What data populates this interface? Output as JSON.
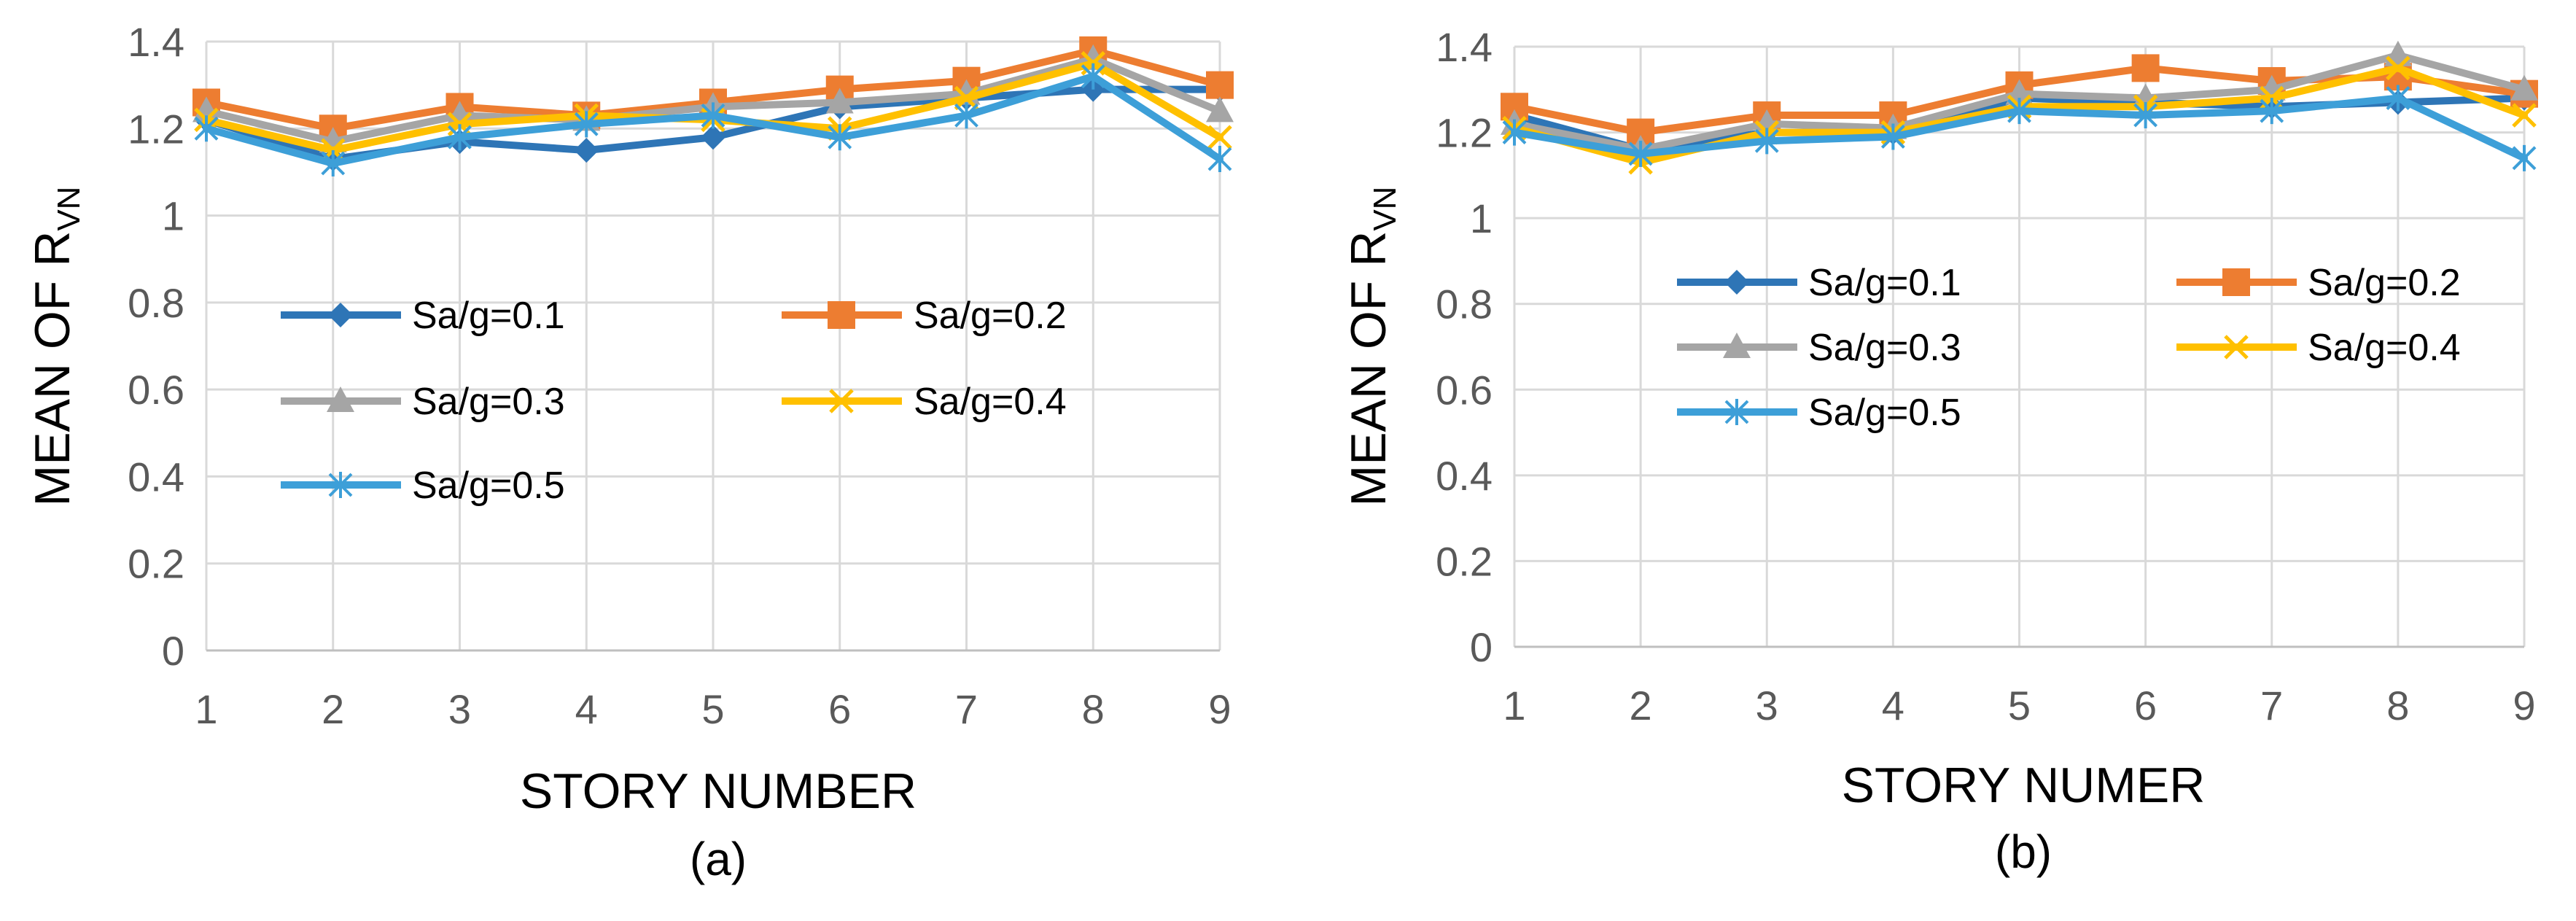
{
  "series_styles": [
    {
      "name": "Sa/g=0.1",
      "color": "#2E75B6",
      "marker": "diamond"
    },
    {
      "name": "Sa/g=0.2",
      "color": "#ED7D31",
      "marker": "square"
    },
    {
      "name": "Sa/g=0.3",
      "color": "#A5A5A5",
      "marker": "triangle"
    },
    {
      "name": "Sa/g=0.4",
      "color": "#FFC000",
      "marker": "x"
    },
    {
      "name": "Sa/g=0.5",
      "color": "#3D9FD8",
      "marker": "asterisk"
    }
  ],
  "chart_data": [
    {
      "type": "line",
      "caption": "(a)",
      "title": "",
      "xlabel": "STORY NUMBER",
      "ylabel_main": "MEAN OF R",
      "ylabel_sub": "VN",
      "x": [
        1,
        2,
        3,
        4,
        5,
        6,
        7,
        8,
        9
      ],
      "ylim": [
        0,
        1.4
      ],
      "yticks": [
        0,
        0.2,
        0.4,
        0.6,
        0.8,
        1,
        1.2,
        1.4
      ],
      "grid": true,
      "legend_position": "inside-lower",
      "series": [
        {
          "name": "Sa/g=0.1",
          "values": [
            1.22,
            1.13,
            1.17,
            1.15,
            1.18,
            1.25,
            1.27,
            1.29,
            1.29
          ]
        },
        {
          "name": "Sa/g=0.2",
          "values": [
            1.26,
            1.2,
            1.25,
            1.23,
            1.26,
            1.29,
            1.31,
            1.38,
            1.3
          ]
        },
        {
          "name": "Sa/g=0.3",
          "values": [
            1.24,
            1.17,
            1.23,
            1.22,
            1.25,
            1.26,
            1.28,
            1.36,
            1.24
          ]
        },
        {
          "name": "Sa/g=0.4",
          "values": [
            1.22,
            1.15,
            1.21,
            1.23,
            1.22,
            1.2,
            1.27,
            1.35,
            1.18
          ]
        },
        {
          "name": "Sa/g=0.5",
          "values": [
            1.2,
            1.12,
            1.18,
            1.21,
            1.23,
            1.18,
            1.23,
            1.32,
            1.13
          ]
        }
      ]
    },
    {
      "type": "line",
      "caption": "(b)",
      "title": "",
      "xlabel": "STORY NUMER",
      "ylabel_main": "MEAN OF R",
      "ylabel_sub": "VN",
      "x": [
        1,
        2,
        3,
        4,
        5,
        6,
        7,
        8,
        9
      ],
      "ylim": [
        0,
        1.4
      ],
      "yticks": [
        0,
        0.2,
        0.4,
        0.6,
        0.8,
        1,
        1.2,
        1.4
      ],
      "grid": true,
      "legend_position": "inside-top",
      "series": [
        {
          "name": "Sa/g=0.1",
          "values": [
            1.24,
            1.16,
            1.2,
            1.2,
            1.28,
            1.27,
            1.26,
            1.27,
            1.28
          ]
        },
        {
          "name": "Sa/g=0.2",
          "values": [
            1.26,
            1.2,
            1.24,
            1.24,
            1.31,
            1.35,
            1.32,
            1.33,
            1.29
          ]
        },
        {
          "name": "Sa/g=0.3",
          "values": [
            1.22,
            1.16,
            1.22,
            1.21,
            1.29,
            1.28,
            1.3,
            1.38,
            1.3
          ]
        },
        {
          "name": "Sa/g=0.4",
          "values": [
            1.21,
            1.13,
            1.2,
            1.2,
            1.26,
            1.26,
            1.28,
            1.35,
            1.24
          ]
        },
        {
          "name": "Sa/g=0.5",
          "values": [
            1.2,
            1.15,
            1.18,
            1.19,
            1.25,
            1.24,
            1.25,
            1.28,
            1.14
          ]
        }
      ]
    }
  ]
}
